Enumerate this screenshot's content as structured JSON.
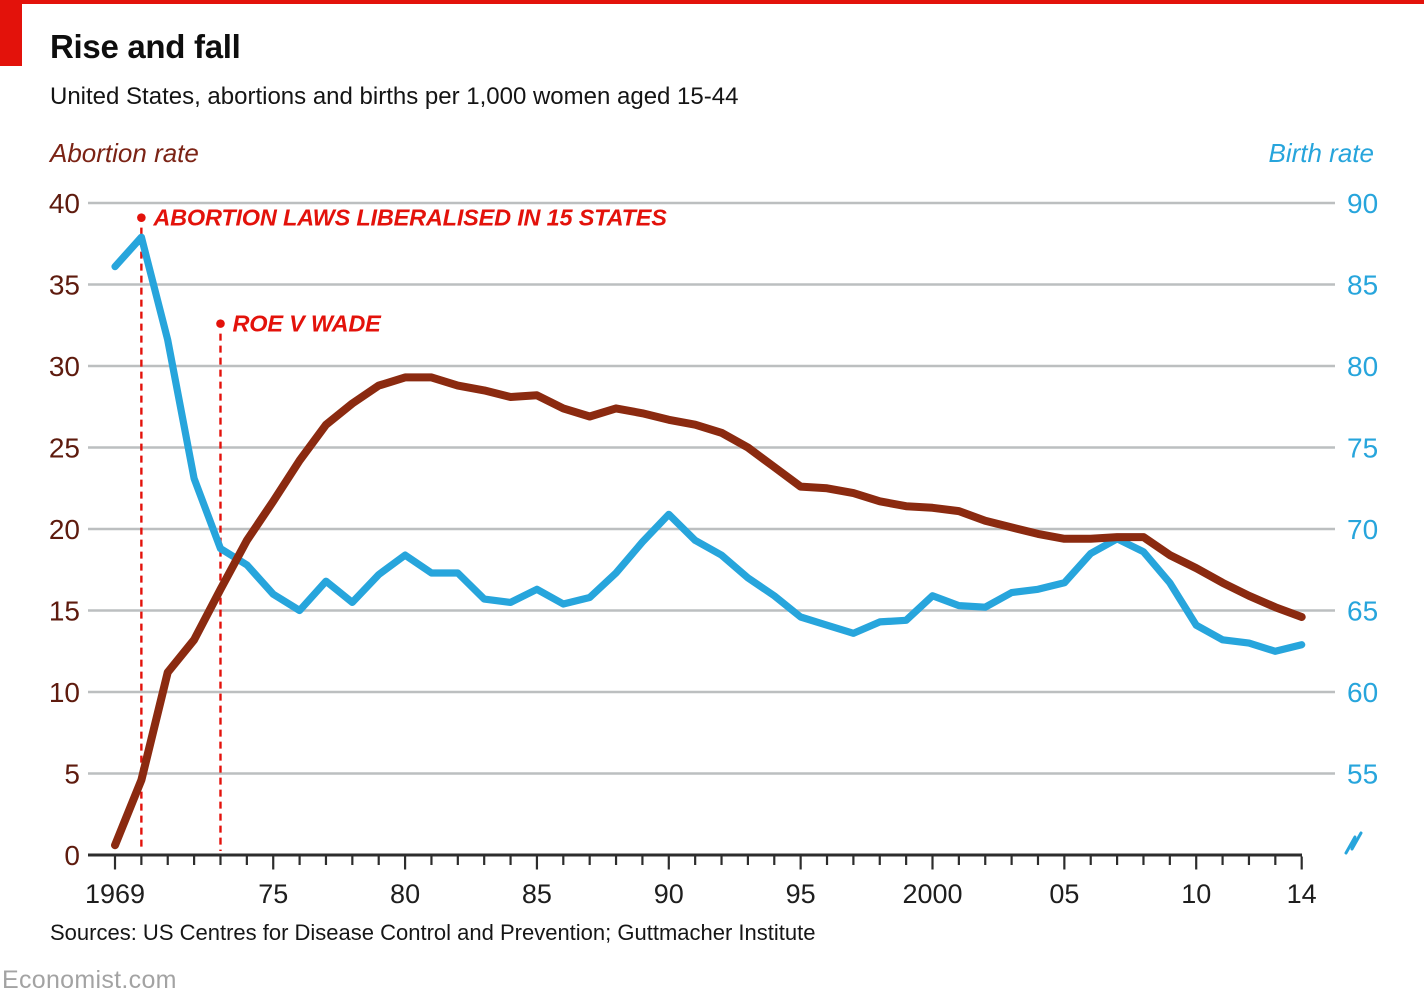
{
  "footer": {
    "sources": "Sources: US Centres for Disease Control and Prevention; Guttmacher Institute",
    "site": "Economist.com"
  },
  "colors": {
    "accent_red": "#e3120b",
    "abortion_line": "#8b2a10",
    "birth_line": "#27a5dc",
    "grid": "#bcbfc0",
    "axis": "#2d2d2d"
  },
  "chart_data": {
    "type": "line",
    "title": "Rise and fall",
    "subtitle": "United States, abortions and births per 1,000 women aged 15-44",
    "grid": true,
    "x": [
      1969,
      1970,
      1971,
      1972,
      1973,
      1974,
      1975,
      1976,
      1977,
      1978,
      1979,
      1980,
      1981,
      1982,
      1983,
      1984,
      1985,
      1986,
      1987,
      1988,
      1989,
      1990,
      1991,
      1992,
      1993,
      1994,
      1995,
      1996,
      1997,
      1998,
      1999,
      2000,
      2001,
      2002,
      2003,
      2004,
      2005,
      2006,
      2007,
      2008,
      2009,
      2010,
      2011,
      2012,
      2013,
      2014
    ],
    "series": [
      {
        "name": "Abortion rate",
        "axis": "left",
        "color": "#8b2a10",
        "values": [
          0.6,
          4.6,
          11.2,
          13.2,
          16.3,
          19.3,
          21.7,
          24.2,
          26.4,
          27.7,
          28.8,
          29.3,
          29.3,
          28.8,
          28.5,
          28.1,
          28.2,
          27.4,
          26.9,
          27.4,
          27.1,
          26.7,
          26.4,
          25.9,
          25.0,
          23.8,
          22.6,
          22.5,
          22.2,
          21.7,
          21.4,
          21.3,
          21.1,
          20.5,
          20.1,
          19.7,
          19.4,
          19.4,
          19.5,
          19.5,
          18.4,
          17.6,
          16.7,
          15.9,
          15.2,
          14.6
        ]
      },
      {
        "name": "Birth rate",
        "axis": "right",
        "color": "#27a5dc",
        "values": [
          86.1,
          87.9,
          81.6,
          73.1,
          68.8,
          67.8,
          66.0,
          65.0,
          66.8,
          65.5,
          67.2,
          68.4,
          67.3,
          67.3,
          65.7,
          65.5,
          66.3,
          65.4,
          65.8,
          67.3,
          69.2,
          70.9,
          69.3,
          68.4,
          67.0,
          65.9,
          64.6,
          64.1,
          63.6,
          64.3,
          64.4,
          65.9,
          65.3,
          65.2,
          66.1,
          66.3,
          66.7,
          68.5,
          69.4,
          68.6,
          66.7,
          64.1,
          63.2,
          63.0,
          62.5,
          62.9
        ]
      }
    ],
    "left_axis": {
      "label": "Abortion rate",
      "ticks": [
        40,
        35,
        30,
        25,
        20,
        15,
        10,
        5,
        0
      ],
      "range": [
        0,
        40
      ]
    },
    "right_axis": {
      "label": "Birth rate",
      "ticks": [
        90,
        85,
        80,
        75,
        70,
        65,
        60,
        55
      ],
      "range_shown": [
        55,
        90
      ],
      "axis_break": true
    },
    "x_axis": {
      "tick_years_labeled": [
        1969,
        1975,
        1980,
        1985,
        1990,
        1995,
        2000,
        2005,
        2010,
        2014
      ],
      "tick_labels": [
        "1969",
        "75",
        "80",
        "85",
        "90",
        "95",
        "2000",
        "05",
        "10",
        "14"
      ],
      "minor_ticks_every_year": true
    },
    "annotations": [
      {
        "text": "ABORTION LAWS LIBERALISED IN 15 STATES",
        "year": 1970,
        "marker_value": 39.1
      },
      {
        "text": "ROE V WADE",
        "year": 1973,
        "marker_value": 32.6
      }
    ],
    "legend_position": "axis-titles-above-plot"
  }
}
